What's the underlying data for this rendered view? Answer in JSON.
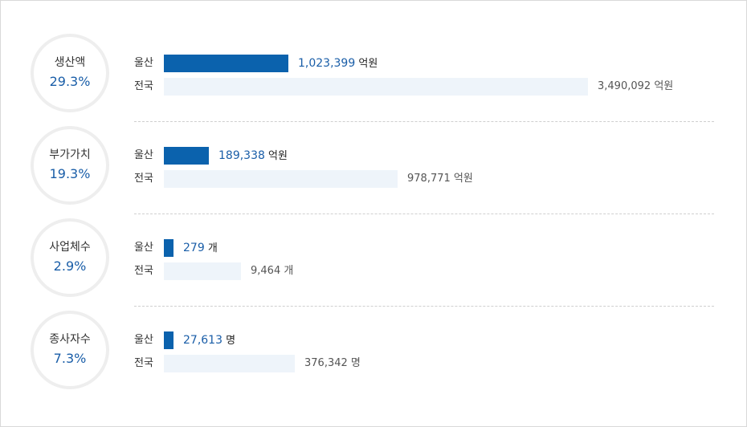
{
  "chart_data": {
    "type": "bar",
    "orientation": "horizontal",
    "series_labels": {
      "ulsan": "울산",
      "nation": "전국"
    },
    "categories": [
      {
        "name": "생산액",
        "percent": "29.3%",
        "ulsan": 1023399,
        "nation": 3490092,
        "ulsan_text": "1,023,399",
        "nation_text": "3,490,092",
        "unit": "억원"
      },
      {
        "name": "부가가치",
        "percent": "19.3%",
        "ulsan": 189338,
        "nation": 978771,
        "ulsan_text": "189,338",
        "nation_text": "978,771",
        "unit": "억원"
      },
      {
        "name": "사업체수",
        "percent": "2.9%",
        "ulsan": 279,
        "nation": 9464,
        "ulsan_text": "279",
        "nation_text": "9,464",
        "unit": "개"
      },
      {
        "name": "종사자수",
        "percent": "7.3%",
        "ulsan": 27613,
        "nation": 376342,
        "ulsan_text": "27,613",
        "nation_text": "376,342",
        "unit": "명"
      }
    ],
    "colors": {
      "ulsan": "#0b62ad",
      "nation": "#eef4fa",
      "accent_text": "#1a5ea8"
    }
  }
}
